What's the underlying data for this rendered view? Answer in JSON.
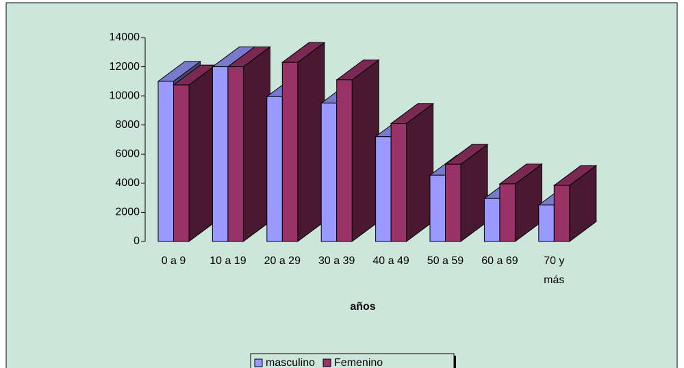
{
  "chart_data": {
    "type": "bar3d",
    "x_label": "años",
    "categories": [
      "0 a 9",
      "10 a 19",
      "20 a 29",
      "30 a 39",
      "40 a 49",
      "50 a 59",
      "60 a 69",
      "70 y más"
    ],
    "series": [
      {
        "name": "masculino",
        "color": "#9999ff",
        "values": [
          11000,
          12000,
          9950,
          9500,
          7200,
          4550,
          2950,
          2500
        ]
      },
      {
        "name": "Femenino",
        "color": "#993366",
        "values": [
          10750,
          12000,
          12300,
          11100,
          8100,
          5300,
          3950,
          3850
        ]
      }
    ],
    "ylim": [
      0,
      14000
    ],
    "yticks": [
      0,
      2000,
      4000,
      6000,
      8000,
      10000,
      12000,
      14000
    ],
    "legend": "bottom"
  }
}
